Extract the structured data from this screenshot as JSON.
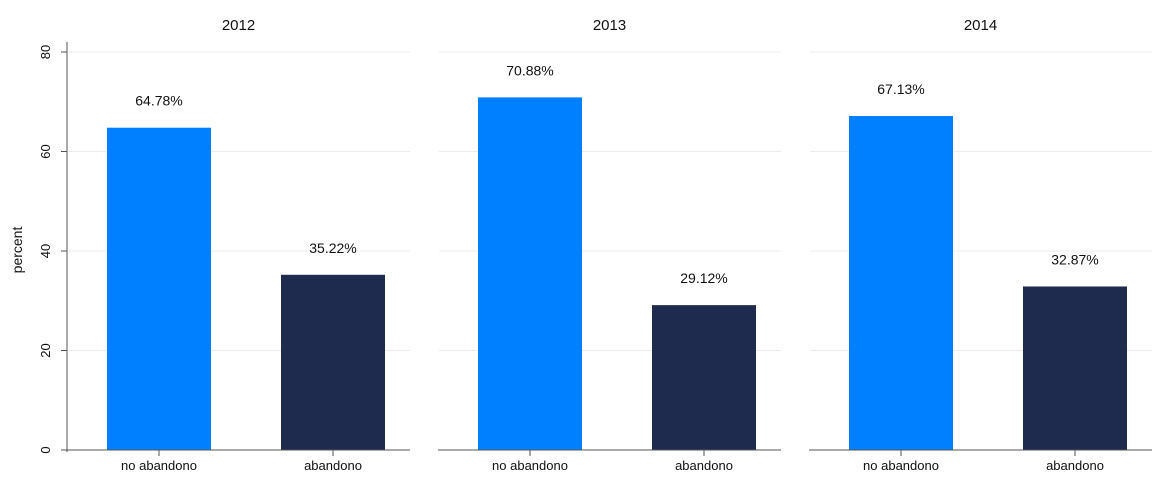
{
  "chart_data": {
    "type": "bar",
    "ylabel": "percent",
    "ylim": [
      0,
      80
    ],
    "yticks": [
      0,
      20,
      40,
      60,
      80
    ],
    "grid": true,
    "colors": {
      "no abandono": "#0080ff",
      "abandono": "#1f2a4f"
    },
    "panels": [
      {
        "title": "2012",
        "categories": [
          "no abandono",
          "abandono"
        ],
        "values": [
          64.78,
          35.22
        ],
        "labels": [
          "64.78%",
          "35.22%"
        ]
      },
      {
        "title": "2013",
        "categories": [
          "no abandono",
          "abandono"
        ],
        "values": [
          70.88,
          29.12
        ],
        "labels": [
          "70.88%",
          "29.12%"
        ]
      },
      {
        "title": "2014",
        "categories": [
          "no abandono",
          "abandono"
        ],
        "values": [
          67.13,
          32.87
        ],
        "labels": [
          "67.13%",
          "32.87%"
        ]
      }
    ]
  }
}
